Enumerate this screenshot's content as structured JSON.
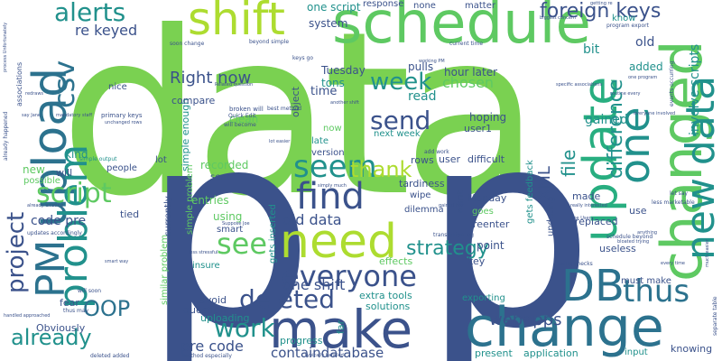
{
  "word_cloud": {
    "background": "#ffffff",
    "palette": [
      "#3b528b",
      "#2c728e",
      "#21918c",
      "#28ae80",
      "#5ec962",
      "#addc30",
      "#440154",
      "#472d7b"
    ],
    "words": [
      {
        "text": "data",
        "color": "#7ad151"
      },
      {
        "text": "p",
        "color": "#3b528b"
      },
      {
        "text": "p",
        "color": "#3b528b"
      },
      {
        "text": "schedule",
        "color": "#5ec962"
      },
      {
        "text": "shift",
        "color": "#addc30"
      },
      {
        "text": "upload",
        "color": "#2c728e"
      },
      {
        "text": "change",
        "color": "#2c728e"
      },
      {
        "text": "changed",
        "color": "#5ec962"
      },
      {
        "text": "update",
        "color": "#28ae80"
      },
      {
        "text": "make",
        "color": "#3b528b"
      },
      {
        "text": "need",
        "color": "#addc30"
      },
      {
        "text": "problem",
        "color": "#21918c"
      },
      {
        "text": "PM",
        "color": "#2c728e"
      },
      {
        "text": "DB",
        "color": "#2c728e"
      },
      {
        "text": "everyone",
        "color": "#3b528b"
      },
      {
        "text": "one",
        "color": "#21918c"
      },
      {
        "text": "new data",
        "color": "#21918c"
      },
      {
        "text": "csv",
        "color": "#2c728e"
      },
      {
        "text": "alerts",
        "color": "#21918c"
      },
      {
        "text": "seem",
        "color": "#21918c"
      },
      {
        "text": "find",
        "color": "#3b528b"
      },
      {
        "text": "thank",
        "color": "#addc30"
      },
      {
        "text": "send",
        "color": "#3b528b"
      },
      {
        "text": "week",
        "color": "#21918c"
      },
      {
        "text": "script",
        "color": "#5ec962"
      },
      {
        "text": "see",
        "color": "#5ec962"
      },
      {
        "text": "thus",
        "color": "#2c728e"
      },
      {
        "text": "deleted",
        "color": "#3b528b"
      },
      {
        "text": "strategy",
        "color": "#21918c"
      },
      {
        "text": "project",
        "color": "#3b528b"
      },
      {
        "text": "work",
        "color": "#21918c"
      },
      {
        "text": "already",
        "color": "#21918c"
      },
      {
        "text": "OOP",
        "color": "#2c728e"
      },
      {
        "text": "webapps",
        "color": "#3b528b"
      },
      {
        "text": "foreign keys",
        "color": "#3b528b"
      },
      {
        "text": "re keyed",
        "color": "#3b528b"
      },
      {
        "text": "difference",
        "color": "#21918c"
      },
      {
        "text": "file",
        "color": "#21918c"
      },
      {
        "text": "XML",
        "color": "#3b528b"
      },
      {
        "text": "Right now",
        "color": "#3b528b"
      },
      {
        "text": "old data",
        "color": "#3b528b"
      },
      {
        "text": "one shift",
        "color": "#3b528b"
      },
      {
        "text": "code pre",
        "color": "#3b528b"
      },
      {
        "text": "pre code",
        "color": "#3b528b"
      },
      {
        "text": "containdatabase",
        "color": "#3b528b"
      },
      {
        "text": "involve scripts",
        "color": "#21918c"
      },
      {
        "text": "chosen",
        "color": "#5ec962"
      },
      {
        "text": "read",
        "color": "#21918c"
      },
      {
        "text": "Tuesday",
        "color": "#3b528b"
      },
      {
        "text": "hour later",
        "color": "#3b528b"
      },
      {
        "text": "pulls",
        "color": "#3b528b"
      },
      {
        "text": "tons",
        "color": "#21918c"
      },
      {
        "text": "time",
        "color": "#3b528b"
      },
      {
        "text": "system",
        "color": "#3b528b"
      },
      {
        "text": "one script",
        "color": "#21918c"
      },
      {
        "text": "response",
        "color": "#3b528b"
      },
      {
        "text": "none",
        "color": "#3b528b"
      },
      {
        "text": "matter",
        "color": "#3b528b"
      },
      {
        "text": "old",
        "color": "#3b528b"
      },
      {
        "text": "bit",
        "color": "#21918c"
      },
      {
        "text": "added",
        "color": "#21918c"
      },
      {
        "text": "know",
        "color": "#21918c"
      },
      {
        "text": "gained",
        "color": "#21918c"
      },
      {
        "text": "hoping",
        "color": "#3b528b"
      },
      {
        "text": "user1",
        "color": "#3b528b"
      },
      {
        "text": "next week",
        "color": "#21918c"
      },
      {
        "text": "late",
        "color": "#21918c"
      },
      {
        "text": "version",
        "color": "#3b528b"
      },
      {
        "text": "now",
        "color": "#5ec962"
      },
      {
        "text": "clean",
        "color": "#5ec962"
      },
      {
        "text": "object",
        "color": "#3b528b"
      },
      {
        "text": "simple enough",
        "color": "#21918c"
      },
      {
        "text": "simple problem",
        "color": "#5ec962"
      },
      {
        "text": "similar problem",
        "color": "#5ec962"
      },
      {
        "text": "compare",
        "color": "#3b528b"
      },
      {
        "text": "nice",
        "color": "#3b528b"
      },
      {
        "text": "kind",
        "color": "#21918c"
      },
      {
        "text": "new",
        "color": "#5ec962"
      },
      {
        "text": "will",
        "color": "#3b528b"
      },
      {
        "text": "possible",
        "color": "#5ec962"
      },
      {
        "text": "people",
        "color": "#3b528b"
      },
      {
        "text": "lot",
        "color": "#3b528b"
      },
      {
        "text": "recorded",
        "color": "#5ec962"
      },
      {
        "text": "sent",
        "color": "#3b528b"
      },
      {
        "text": "rows",
        "color": "#3b528b"
      },
      {
        "text": "user",
        "color": "#3b528b"
      },
      {
        "text": "difficult",
        "color": "#3b528b"
      },
      {
        "text": "tardiness",
        "color": "#3b528b"
      },
      {
        "text": "wipe",
        "color": "#3b528b"
      },
      {
        "text": "dilemma",
        "color": "#3b528b"
      },
      {
        "text": "Monday",
        "color": "#3b528b"
      },
      {
        "text": "reenter",
        "color": "#3b528b"
      },
      {
        "text": "goes",
        "color": "#5ec962"
      },
      {
        "text": "gets feedback",
        "color": "#21918c"
      },
      {
        "text": "updating",
        "color": "#3b528b"
      },
      {
        "text": "made",
        "color": "#3b528b"
      },
      {
        "text": "use",
        "color": "#3b528b"
      },
      {
        "text": "replaced",
        "color": "#3b528b"
      },
      {
        "text": "want",
        "color": "#3b528b"
      },
      {
        "text": "entries",
        "color": "#5ec962"
      },
      {
        "text": "using",
        "color": "#5ec962"
      },
      {
        "text": "smart",
        "color": "#3b528b"
      },
      {
        "text": "tied",
        "color": "#3b528b"
      },
      {
        "text": "currently",
        "color": "#3b528b"
      },
      {
        "text": "gets inserted",
        "color": "#21918c"
      },
      {
        "text": "point",
        "color": "#3b528b"
      },
      {
        "text": "key",
        "color": "#3b528b"
      },
      {
        "text": "useless",
        "color": "#3b528b"
      },
      {
        "text": "must make",
        "color": "#3b528b"
      },
      {
        "text": "effects",
        "color": "#5ec962"
      },
      {
        "text": "extra tools",
        "color": "#21918c"
      },
      {
        "text": "solutions",
        "color": "#21918c"
      },
      {
        "text": "avoid",
        "color": "#3b528b"
      },
      {
        "text": "question",
        "color": "#3b528b"
      },
      {
        "text": "uploading",
        "color": "#21918c"
      },
      {
        "text": "insure",
        "color": "#21918c"
      },
      {
        "text": "fear",
        "color": "#3b528b"
      },
      {
        "text": "Obviously",
        "color": "#3b528b"
      },
      {
        "text": "progress",
        "color": "#21918c"
      },
      {
        "text": "far",
        "color": "#21918c"
      },
      {
        "text": "exporting",
        "color": "#21918c"
      },
      {
        "text": "present",
        "color": "#21918c"
      },
      {
        "text": "application",
        "color": "#21918c"
      },
      {
        "text": "input",
        "color": "#21918c"
      },
      {
        "text": "knowing",
        "color": "#3b528b"
      },
      {
        "text": "primary keys",
        "color": "#3b528b"
      },
      {
        "text": "broken will",
        "color": "#3b528b"
      },
      {
        "text": "associations",
        "color": "#3b528b"
      },
      {
        "text": "simple output",
        "color": "#21918c"
      },
      {
        "text": "separate table",
        "color": "#3b528b"
      },
      {
        "text": "schedule beyond",
        "color": "#3b528b"
      },
      {
        "text": "program export",
        "color": "#3b528b"
      },
      {
        "text": "events occurring",
        "color": "#3b528b"
      },
      {
        "text": "Quick Edit",
        "color": "#3b528b"
      },
      {
        "text": "best method",
        "color": "#3b528b"
      },
      {
        "text": "will become",
        "color": "#3b528b"
      },
      {
        "text": "keys go",
        "color": "#3b528b"
      },
      {
        "text": "current time",
        "color": "#3b528b"
      },
      {
        "text": "beyond simple",
        "color": "#3b528b"
      },
      {
        "text": "soon change",
        "color": "#3b528b"
      },
      {
        "text": "Related question",
        "color": "#3b528b"
      },
      {
        "text": "working PM",
        "color": "#3b528b"
      },
      {
        "text": "add work",
        "color": "#3b528b"
      },
      {
        "text": "less marketable",
        "color": "#3b528b"
      },
      {
        "text": "transaction log",
        "color": "#3b528b"
      },
      {
        "text": "let say",
        "color": "#3b528b"
      },
      {
        "text": "using checks",
        "color": "#3b528b"
      },
      {
        "text": "every time",
        "color": "#3b528b"
      },
      {
        "text": "gained two",
        "color": "#3b528b"
      },
      {
        "text": "will soon",
        "color": "#3b528b"
      },
      {
        "text": "thus may",
        "color": "#3b528b"
      },
      {
        "text": "handled approached",
        "color": "#3b528b"
      },
      {
        "text": "deleted added",
        "color": "#3b528b"
      },
      {
        "text": "method especially",
        "color": "#3b528b"
      },
      {
        "text": "updates accordingly",
        "color": "#3b528b"
      },
      {
        "text": "already existing",
        "color": "#3b528b"
      },
      {
        "text": "already happened",
        "color": "#3b528b"
      },
      {
        "text": "process Unfortunately",
        "color": "#3b528b"
      },
      {
        "text": "less stressful",
        "color": "#3b528b"
      },
      {
        "text": "lot easier",
        "color": "#3b528b"
      },
      {
        "text": "really interested",
        "color": "#3b528b"
      },
      {
        "text": "everyone involved",
        "color": "#3b528b"
      },
      {
        "text": "routine every",
        "color": "#3b528b"
      },
      {
        "text": "one program",
        "color": "#3b528b"
      },
      {
        "text": "getting re",
        "color": "#3b528b"
      },
      {
        "text": "biggest concern",
        "color": "#3b528b"
      },
      {
        "text": "mandatory staff",
        "color": "#3b528b"
      },
      {
        "text": "say Jane",
        "color": "#3b528b"
      },
      {
        "text": "unchanged rows",
        "color": "#3b528b"
      },
      {
        "text": "redraws",
        "color": "#3b528b"
      },
      {
        "text": "smart way",
        "color": "#3b528b"
      },
      {
        "text": "typically handled",
        "color": "#3b528b"
      },
      {
        "text": "simply much",
        "color": "#3b528b"
      },
      {
        "text": "Suppose Joe",
        "color": "#3b528b"
      },
      {
        "text": "Joe User",
        "color": "#3b528b"
      },
      {
        "text": "anything",
        "color": "#3b528b"
      },
      {
        "text": "bloated trying",
        "color": "#3b528b"
      },
      {
        "text": "much easier",
        "color": "#3b528b"
      },
      {
        "text": "specific associations",
        "color": "#3b528b"
      },
      {
        "text": "another shift",
        "color": "#3b528b"
      }
    ]
  }
}
